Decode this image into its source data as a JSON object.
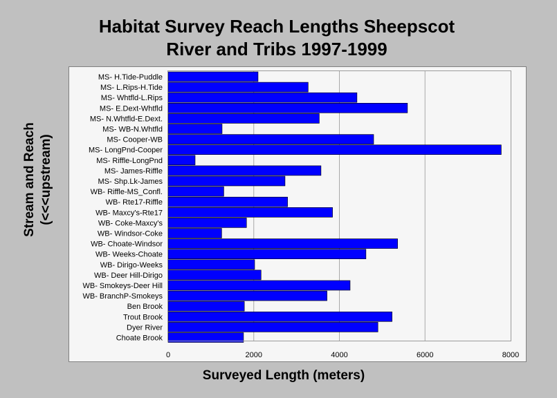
{
  "chart_data": {
    "type": "bar",
    "orientation": "horizontal",
    "title_line1": "Habitat Survey Reach Lengths Sheepscot",
    "title_line2": "River and Tribs 1997-1999",
    "xlabel": "Surveyed Length (meters)",
    "ylabel_line1": "Stream and Reach",
    "ylabel_line2": "(<<<upstream)",
    "xlim": [
      0,
      8000
    ],
    "xticks": [
      0,
      2000,
      4000,
      6000,
      8000
    ],
    "grid": "vertical",
    "bar_color": "#0000ff",
    "categories": [
      "MS- H.Tide-Puddle",
      "MS- L.Rips-H.Tide",
      "MS- Whtfld-L.Rips",
      "MS- E.Dext-Whtfld",
      "MS- N.Whtfld-E.Dext.",
      "MS- WB-N.Whtfld",
      "MS- Cooper-WB",
      "MS- LongPnd-Cooper",
      "MS- Riffle-LongPnd",
      "MS- James-Riffle",
      "MS- Shp.Lk-James",
      "WB- Riffle-MS_Confl.",
      "WB- Rte17-Riffle",
      "WB- Maxcy's-Rte17",
      "WB- Coke-Maxcy's",
      "WB- Windsor-Coke",
      "WB- Choate-Windsor",
      "WB- Weeks-Choate",
      "WB- Dirigo-Weeks",
      "WB- Deer Hill-Dirigo",
      "WB- Smokeys-Deer Hill",
      "WB- BranchP-Smokeys",
      "Ben Brook",
      "Trout Brook",
      "Dyer River",
      "Choate Brook"
    ],
    "values": [
      2100,
      3270,
      4410,
      5590,
      3530,
      1260,
      4800,
      7780,
      630,
      3570,
      2730,
      1300,
      2790,
      3840,
      1830,
      1250,
      5360,
      4620,
      2020,
      2170,
      4250,
      3710,
      1780,
      5230,
      4900,
      1760
    ]
  }
}
